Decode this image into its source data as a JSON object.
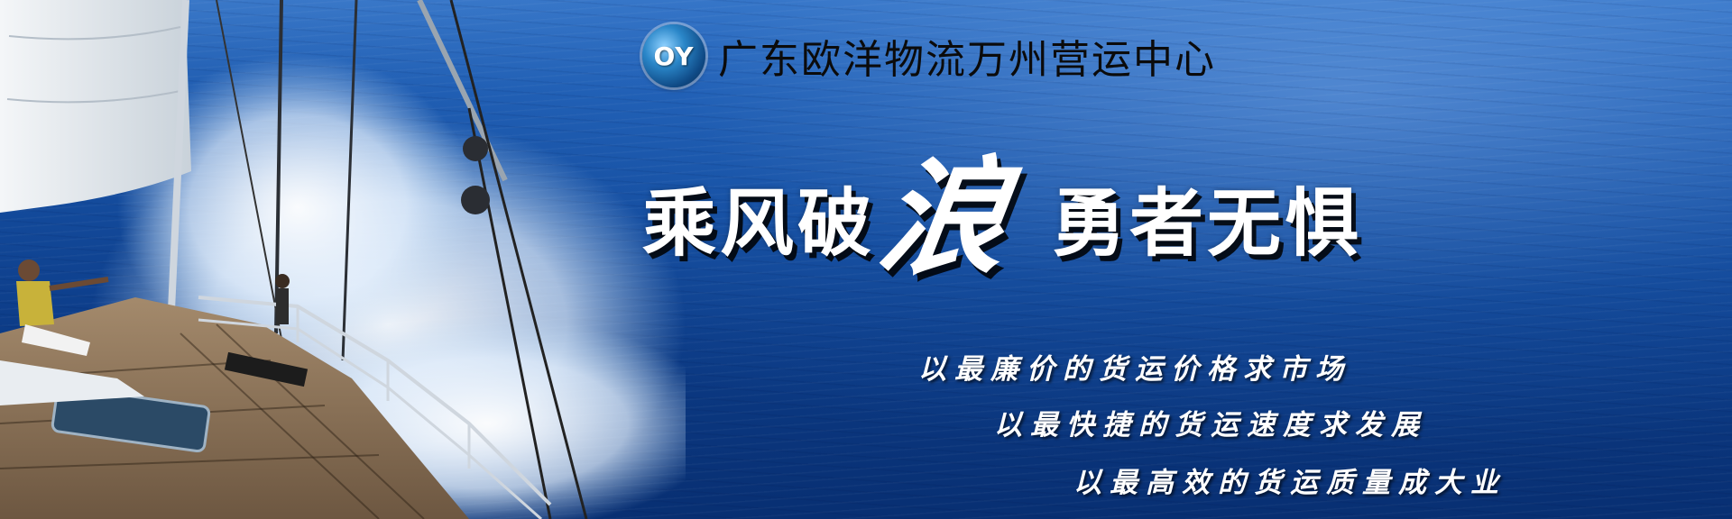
{
  "logo": {
    "mark": "OY",
    "company_name": "广东欧洋物流万州营运中心"
  },
  "slogan": {
    "part1": "乘风破",
    "highlight": "浪",
    "part2": "勇者无惧"
  },
  "mottos": [
    "以最廉价的货运价格求市场",
    "以最快捷的货运速度求发展",
    "以最高效的货运质量成大业"
  ],
  "colors": {
    "sea": "#134a9b",
    "text_light": "#ffffff",
    "text_dark": "#0b0b0b"
  }
}
